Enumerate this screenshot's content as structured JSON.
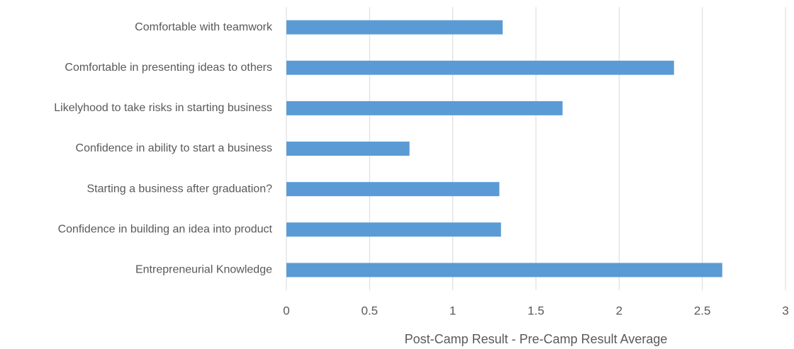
{
  "chart_data": {
    "type": "barh",
    "xlabel": "Post-Camp Result - Pre-Camp Result Average",
    "categories": [
      "Comfortable with teamwork",
      "Comfortable in presenting ideas to others",
      "Likelyhood to take risks in starting business",
      "Confidence in ability to start a business",
      "Starting a business after graduation?",
      "Confidence in building an idea into product",
      "Entrepreneurial Knowledge"
    ],
    "values": [
      1.3,
      2.33,
      1.66,
      0.74,
      1.28,
      1.29,
      2.62
    ],
    "color": "#5b9bd5",
    "xlim": [
      0,
      3
    ],
    "xticks": [
      0,
      0.5,
      1,
      1.5,
      2,
      2.5,
      3
    ],
    "grid": true
  }
}
